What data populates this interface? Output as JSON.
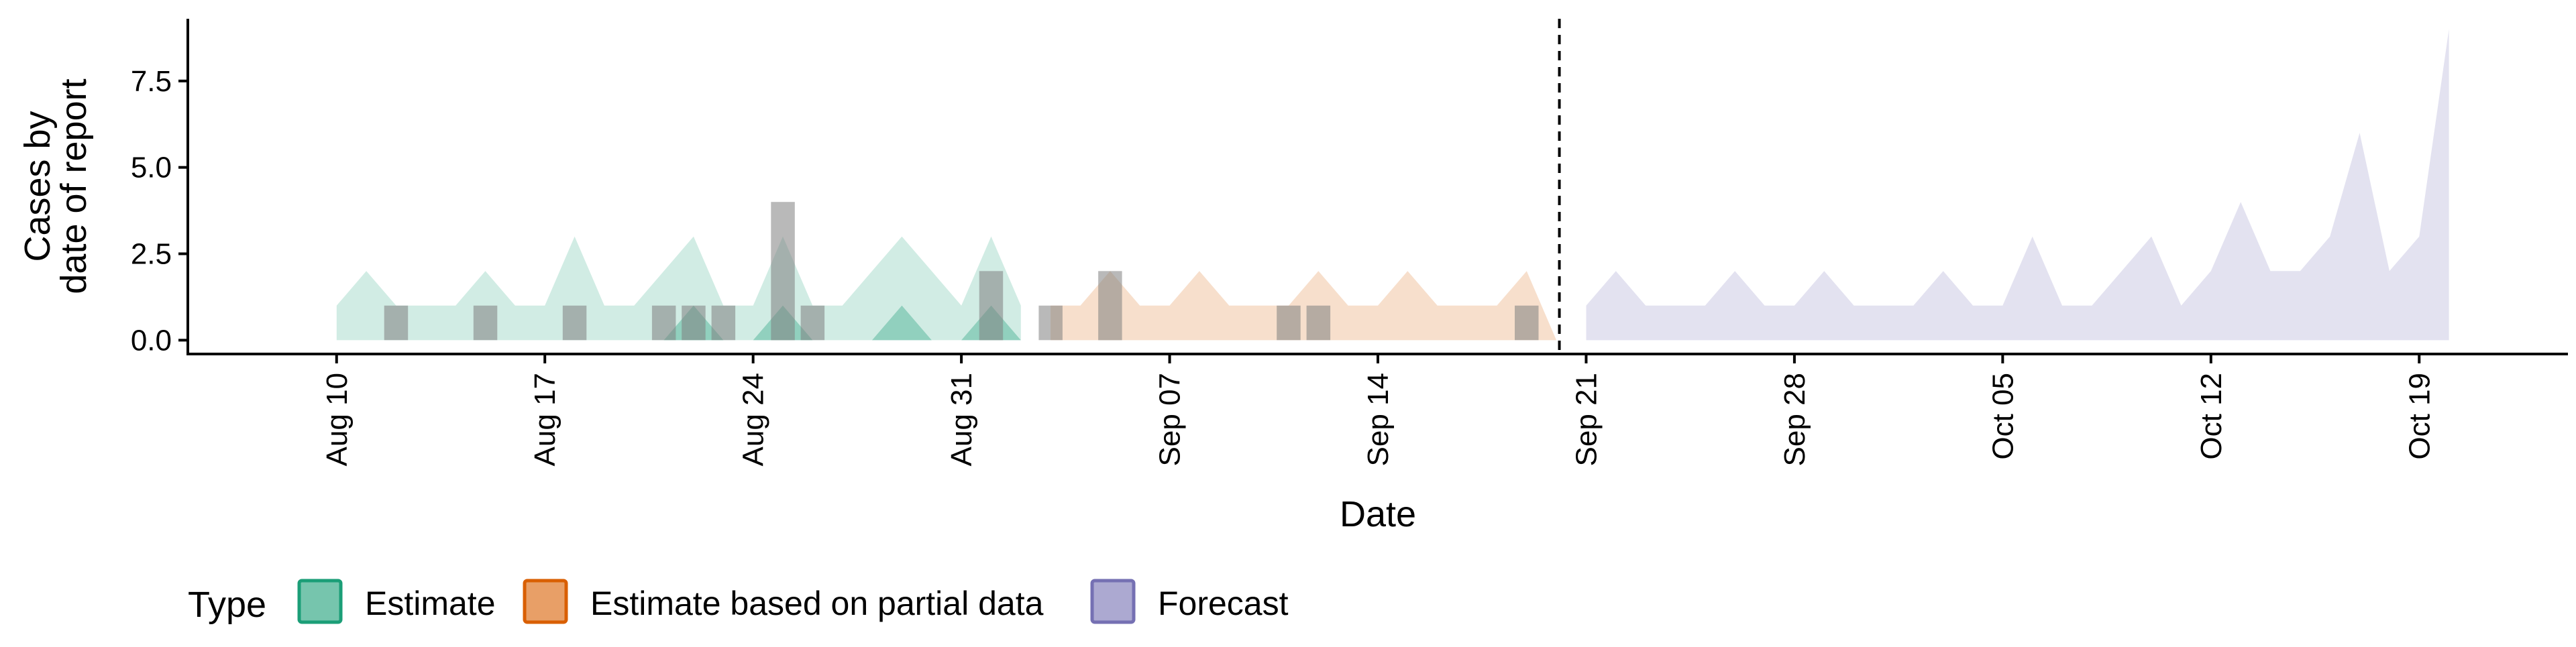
{
  "chart_data": {
    "type": "area",
    "xlabel": "Date",
    "ylabel": [
      "Cases by",
      "date of report"
    ],
    "ylim": [
      -0.4,
      9.3
    ],
    "y_ticks": [
      0.0,
      2.5,
      5.0,
      7.5
    ],
    "y_tick_labels": [
      "0.0",
      "2.5",
      "5.0",
      "7.5"
    ],
    "x_ticks": [
      "2020-08-10",
      "2020-08-17",
      "2020-08-24",
      "2020-08-31",
      "2020-09-07",
      "2020-09-14",
      "2020-09-21",
      "2020-09-28",
      "2020-10-05",
      "2020-10-12",
      "2020-10-19"
    ],
    "x_tick_labels": [
      "Aug 10",
      "Aug 17",
      "Aug 24",
      "Aug 31",
      "Sep 07",
      "Sep 14",
      "Sep 21",
      "Sep 28",
      "Oct 05",
      "Oct 12",
      "Oct 19"
    ],
    "xlim": [
      "2020-08-05",
      "2020-10-24"
    ],
    "forecast_date": "2020-09-20",
    "grid": false,
    "legend": {
      "title": "Type",
      "position": "bottom",
      "entries": [
        "Estimate",
        "Estimate based on partial data",
        "Forecast"
      ]
    },
    "colors": {
      "Estimate": "#1b9e77",
      "Estimate based on partial data": "#d95f02",
      "Forecast": "#7570b3",
      "observed_bars": "#808080"
    },
    "series": [
      {
        "name": "Estimate",
        "outer": [
          [
            "2020-08-10",
            0,
            1
          ],
          [
            "2020-08-11",
            0,
            2
          ],
          [
            "2020-08-12",
            0,
            1
          ],
          [
            "2020-08-13",
            0,
            1
          ],
          [
            "2020-08-14",
            0,
            1
          ],
          [
            "2020-08-15",
            0,
            2
          ],
          [
            "2020-08-16",
            0,
            1
          ],
          [
            "2020-08-17",
            0,
            1
          ],
          [
            "2020-08-18",
            0,
            3
          ],
          [
            "2020-08-19",
            0,
            1
          ],
          [
            "2020-08-20",
            0,
            1
          ],
          [
            "2020-08-21",
            0,
            2
          ],
          [
            "2020-08-22",
            0,
            3
          ],
          [
            "2020-08-23",
            0,
            1
          ],
          [
            "2020-08-24",
            0,
            1
          ],
          [
            "2020-08-25",
            0,
            3
          ],
          [
            "2020-08-26",
            0,
            1
          ],
          [
            "2020-08-27",
            0,
            1
          ],
          [
            "2020-08-28",
            0,
            2
          ],
          [
            "2020-08-29",
            0,
            3
          ],
          [
            "2020-08-30",
            0,
            2
          ],
          [
            "2020-08-31",
            0,
            1
          ],
          [
            "2020-09-01",
            0,
            3
          ],
          [
            "2020-09-02",
            0,
            1
          ]
        ],
        "inner": [
          [
            "2020-08-21",
            0,
            0
          ],
          [
            "2020-08-22",
            0,
            1
          ],
          [
            "2020-08-23",
            0,
            0
          ],
          [
            "2020-08-24",
            0,
            0
          ],
          [
            "2020-08-25",
            0,
            1
          ],
          [
            "2020-08-26",
            0,
            0
          ],
          [
            "2020-08-28",
            0,
            0
          ],
          [
            "2020-08-29",
            0,
            1
          ],
          [
            "2020-08-30",
            0,
            0
          ],
          [
            "2020-08-31",
            0,
            0
          ],
          [
            "2020-09-01",
            0,
            1
          ],
          [
            "2020-09-02",
            0,
            0
          ]
        ]
      },
      {
        "name": "Estimate based on partial data",
        "outer": [
          [
            "2020-09-03",
            0,
            1
          ],
          [
            "2020-09-04",
            0,
            1
          ],
          [
            "2020-09-05",
            0,
            2
          ],
          [
            "2020-09-06",
            0,
            1
          ],
          [
            "2020-09-07",
            0,
            1
          ],
          [
            "2020-09-08",
            0,
            2
          ],
          [
            "2020-09-09",
            0,
            1
          ],
          [
            "2020-09-10",
            0,
            1
          ],
          [
            "2020-09-11",
            0,
            1
          ],
          [
            "2020-09-12",
            0,
            2
          ],
          [
            "2020-09-13",
            0,
            1
          ],
          [
            "2020-09-14",
            0,
            1
          ],
          [
            "2020-09-15",
            0,
            2
          ],
          [
            "2020-09-16",
            0,
            1
          ],
          [
            "2020-09-17",
            0,
            1
          ],
          [
            "2020-09-18",
            0,
            1
          ],
          [
            "2020-09-19",
            0,
            2
          ],
          [
            "2020-09-20",
            0,
            0
          ]
        ]
      },
      {
        "name": "Forecast",
        "outer": [
          [
            "2020-09-21",
            0,
            1
          ],
          [
            "2020-09-22",
            0,
            2
          ],
          [
            "2020-09-23",
            0,
            1
          ],
          [
            "2020-09-24",
            0,
            1
          ],
          [
            "2020-09-25",
            0,
            1
          ],
          [
            "2020-09-26",
            0,
            2
          ],
          [
            "2020-09-27",
            0,
            1
          ],
          [
            "2020-09-28",
            0,
            1
          ],
          [
            "2020-09-29",
            0,
            2
          ],
          [
            "2020-09-30",
            0,
            1
          ],
          [
            "2020-10-01",
            0,
            1
          ],
          [
            "2020-10-02",
            0,
            1
          ],
          [
            "2020-10-03",
            0,
            2
          ],
          [
            "2020-10-04",
            0,
            1
          ],
          [
            "2020-10-05",
            0,
            1
          ],
          [
            "2020-10-06",
            0,
            3
          ],
          [
            "2020-10-07",
            0,
            1
          ],
          [
            "2020-10-08",
            0,
            1
          ],
          [
            "2020-10-09",
            0,
            2
          ],
          [
            "2020-10-10",
            0,
            3
          ],
          [
            "2020-10-11",
            0,
            1
          ],
          [
            "2020-10-12",
            0,
            2
          ],
          [
            "2020-10-13",
            0,
            4
          ],
          [
            "2020-10-14",
            0,
            2
          ],
          [
            "2020-10-15",
            0,
            2
          ],
          [
            "2020-10-16",
            0,
            3
          ],
          [
            "2020-10-17",
            0,
            6
          ],
          [
            "2020-10-18",
            0,
            2
          ],
          [
            "2020-10-19",
            0,
            3
          ],
          [
            "2020-10-20",
            0,
            9
          ]
        ]
      }
    ],
    "observed": [
      [
        "2020-08-12",
        1
      ],
      [
        "2020-08-15",
        1
      ],
      [
        "2020-08-18",
        1
      ],
      [
        "2020-08-21",
        1
      ],
      [
        "2020-08-22",
        1
      ],
      [
        "2020-08-23",
        1
      ],
      [
        "2020-08-25",
        4
      ],
      [
        "2020-08-26",
        1
      ],
      [
        "2020-09-01",
        2
      ],
      [
        "2020-09-03",
        1
      ],
      [
        "2020-09-05",
        2
      ],
      [
        "2020-09-11",
        1
      ],
      [
        "2020-09-12",
        1
      ],
      [
        "2020-09-19",
        1
      ]
    ]
  }
}
